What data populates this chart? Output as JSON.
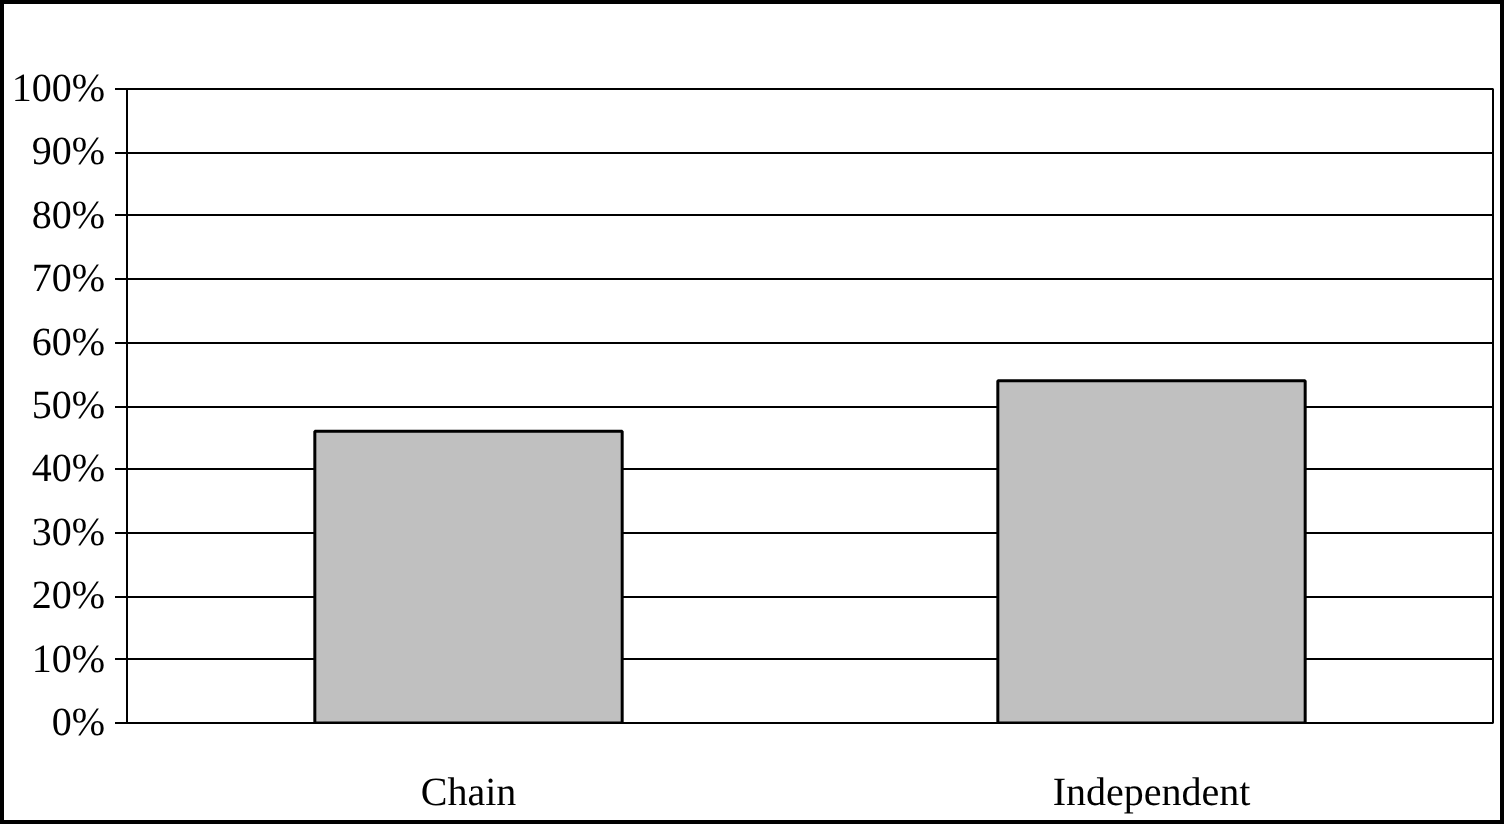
{
  "chart_data": {
    "type": "bar",
    "categories": [
      "Chain",
      "Independent"
    ],
    "values": [
      46,
      54
    ],
    "color": "#c0c0c0",
    "ylim": [
      0,
      100
    ],
    "yticks": [
      {
        "value": 0,
        "label": "0%"
      },
      {
        "value": 10,
        "label": "10%"
      },
      {
        "value": 20,
        "label": "20%"
      },
      {
        "value": 30,
        "label": "30%"
      },
      {
        "value": 40,
        "label": "40%"
      },
      {
        "value": 50,
        "label": "50%"
      },
      {
        "value": 60,
        "label": "60%"
      },
      {
        "value": 70,
        "label": "70%"
      },
      {
        "value": 80,
        "label": "80%"
      },
      {
        "value": 90,
        "label": "90%"
      },
      {
        "value": 100,
        "label": "100%"
      }
    ],
    "grid": "y"
  }
}
